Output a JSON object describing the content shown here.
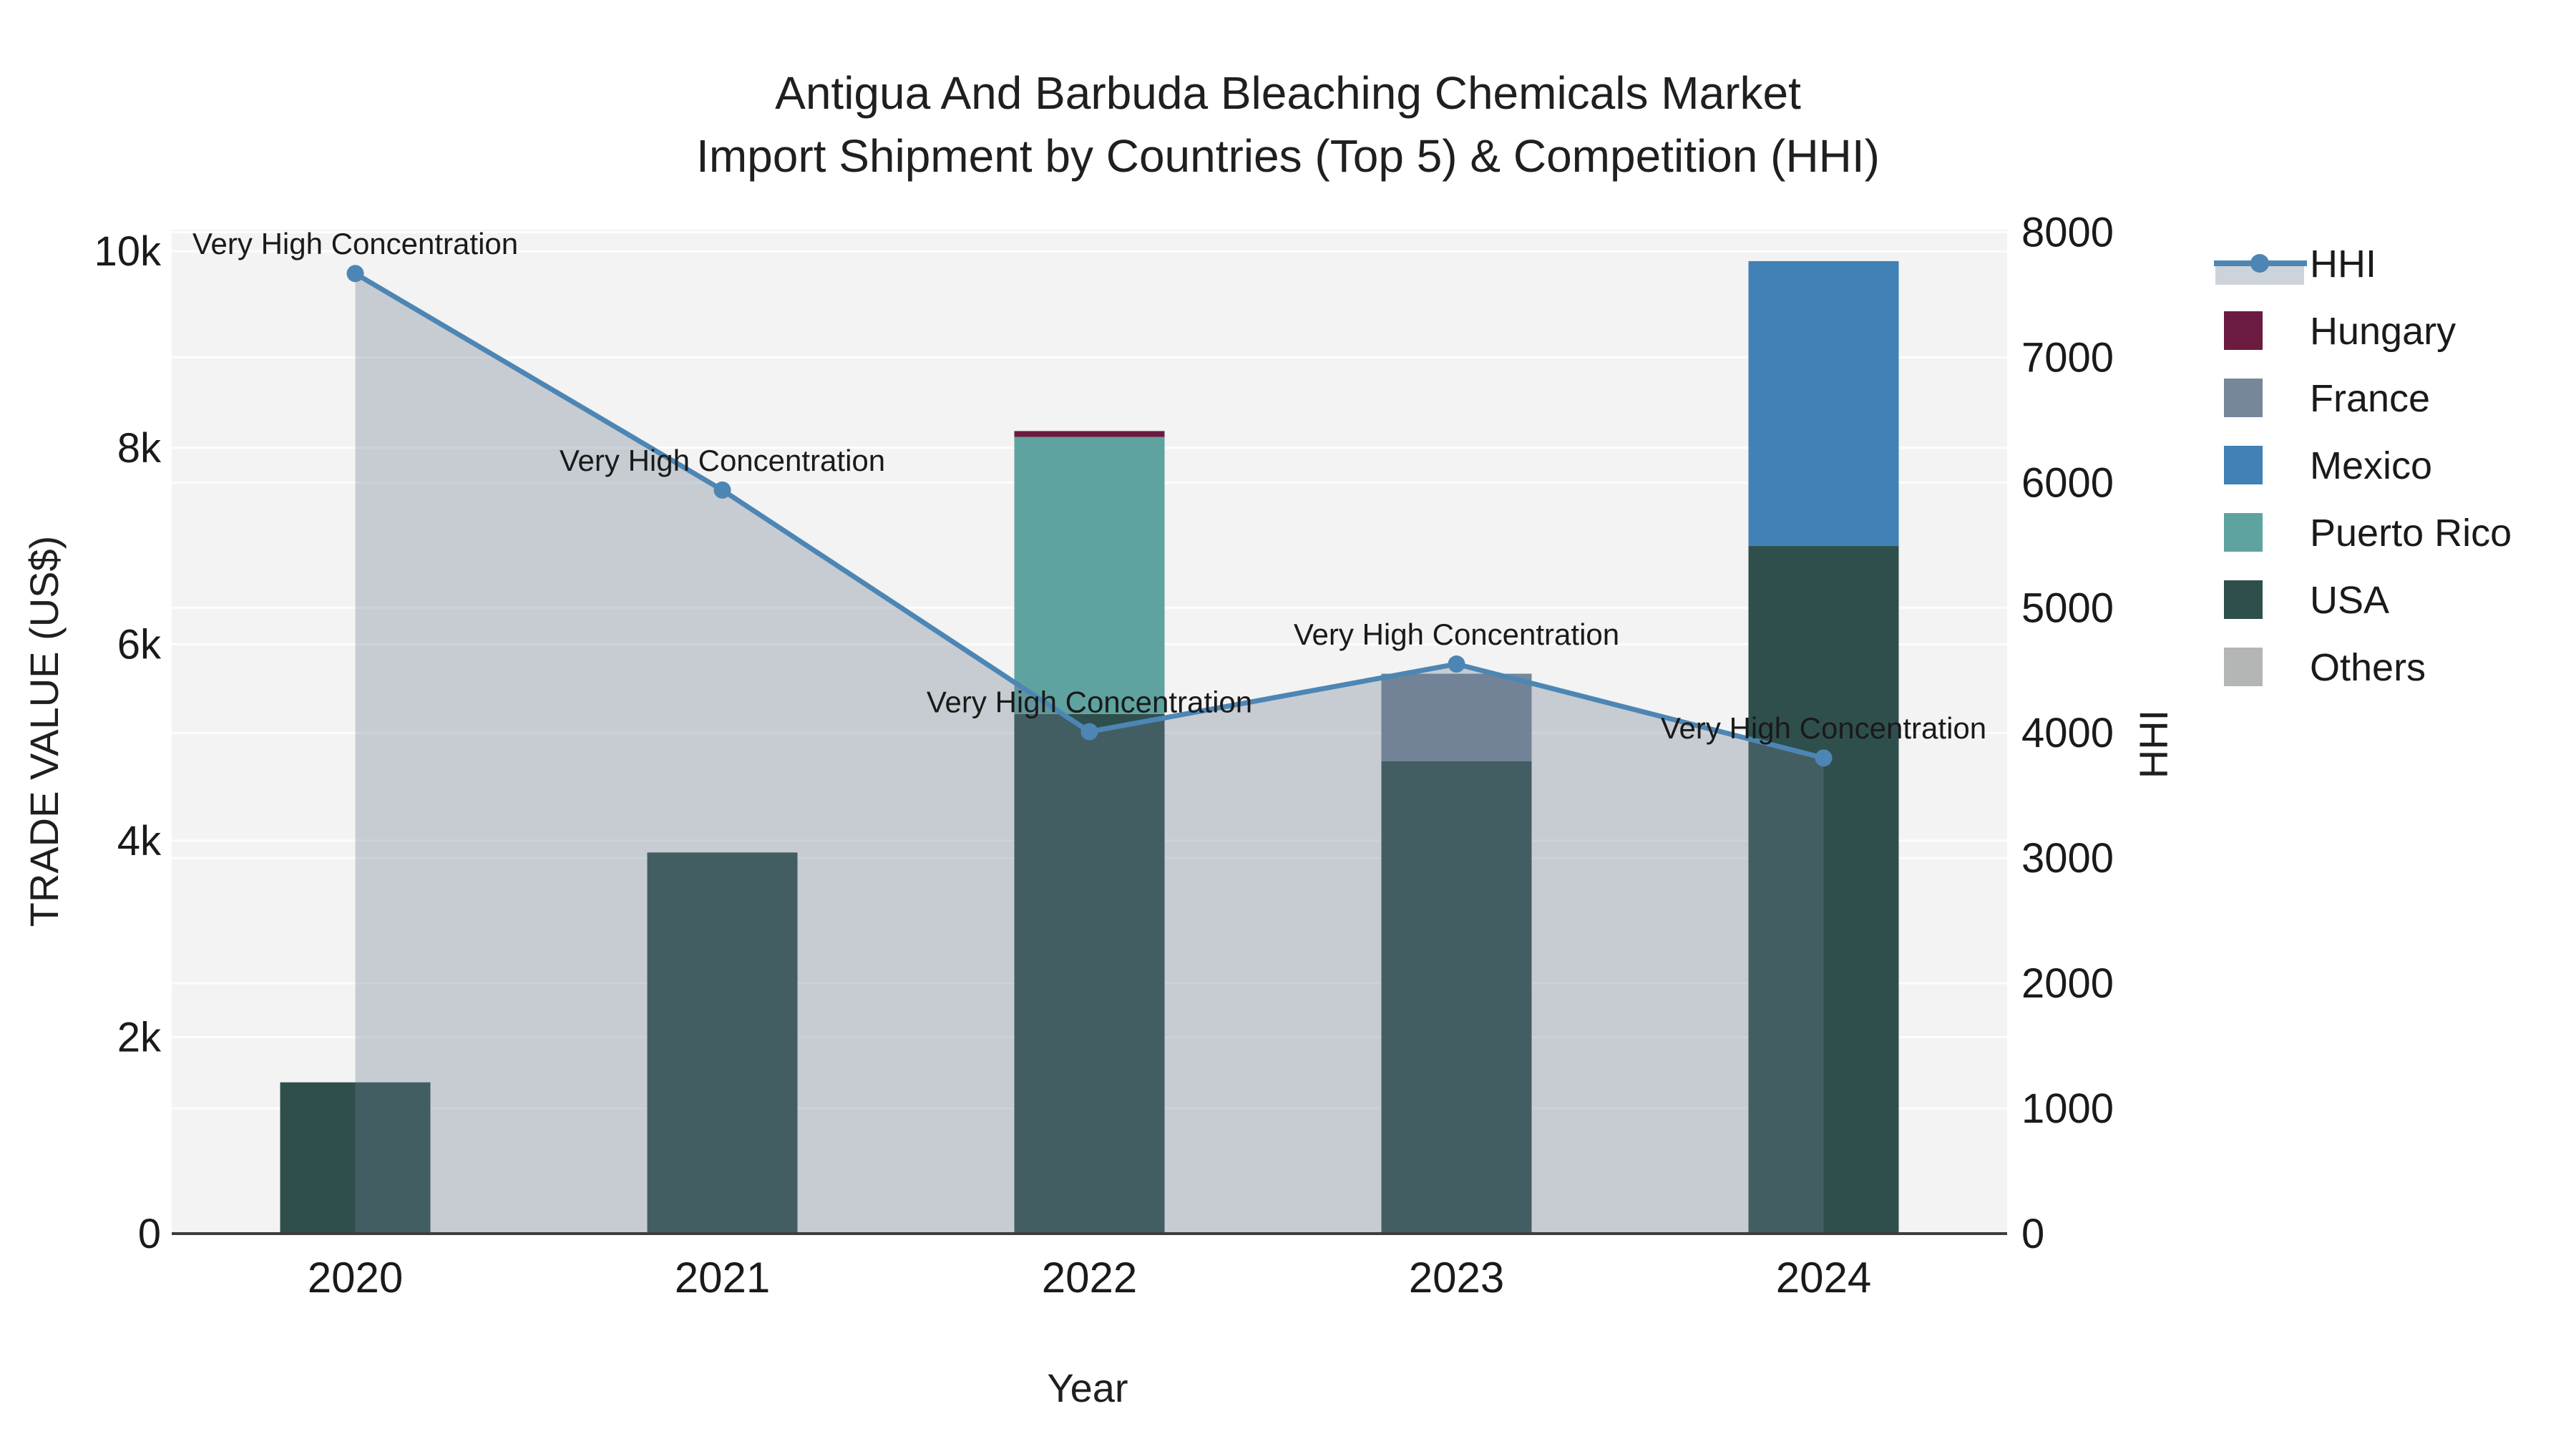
{
  "chart_data": {
    "type": "combo-stacked-bar-line",
    "title": "Antigua And Barbuda Bleaching Chemicals Market",
    "subtitle": "Import Shipment by Countries (Top 5) & Competition (HHI)",
    "xlabel": "Year",
    "ylabel_left": "TRADE VALUE (US$)",
    "ylabel_right": "HHI",
    "categories": [
      "2020",
      "2021",
      "2022",
      "2023",
      "2024"
    ],
    "bar_series": [
      {
        "name": "Hungary",
        "color": "#6b1b3f",
        "values": [
          0,
          0,
          60,
          0,
          0
        ]
      },
      {
        "name": "France",
        "color": "#76879a",
        "values": [
          0,
          0,
          0,
          890,
          0
        ]
      },
      {
        "name": "Mexico",
        "color": "#4181b5",
        "values": [
          0,
          0,
          0,
          0,
          2900
        ]
      },
      {
        "name": "Puerto Rico",
        "color": "#5fa3a0",
        "values": [
          0,
          0,
          2820,
          0,
          0
        ]
      },
      {
        "name": "USA",
        "color": "#2f4f4d",
        "values": [
          1540,
          3880,
          5290,
          4810,
          7000
        ]
      },
      {
        "name": "Others",
        "color": "#b3b6b5",
        "values": [
          0,
          0,
          0,
          0,
          0
        ]
      }
    ],
    "stack_order": [
      "Others",
      "USA",
      "Puerto Rico",
      "Mexico",
      "France",
      "Hungary"
    ],
    "line_series": {
      "name": "HHI",
      "color": "#4d86b4",
      "area_fill": "rgba(110,125,145,0.33)",
      "legend_band_color": "#ccd3da",
      "values": [
        7670,
        5940,
        4010,
        4550,
        3800
      ]
    },
    "annotations": [
      {
        "category": "2020",
        "text": "Very High Concentration"
      },
      {
        "category": "2021",
        "text": "Very High Concentration"
      },
      {
        "category": "2022",
        "text": "Very High Concentration"
      },
      {
        "category": "2023",
        "text": "Very High Concentration"
      },
      {
        "category": "2024",
        "text": "Very High Concentration"
      }
    ],
    "axes": {
      "left": {
        "range": [
          0,
          10220
        ],
        "ticks": [
          0,
          2000,
          4000,
          6000,
          8000,
          10000
        ],
        "tick_labels": [
          "0",
          "2k",
          "4k",
          "6k",
          "8k",
          "10k"
        ]
      },
      "right": {
        "range": [
          0,
          8020
        ],
        "ticks": [
          0,
          1000,
          2000,
          3000,
          4000,
          5000,
          6000,
          7000,
          8000
        ],
        "tick_labels": [
          "0",
          "1000",
          "2000",
          "3000",
          "4000",
          "5000",
          "6000",
          "7000",
          "8000"
        ]
      },
      "x": {
        "tick_labels": [
          "2020",
          "2021",
          "2022",
          "2023",
          "2024"
        ]
      }
    },
    "legend": {
      "position": "right",
      "entries": [
        "HHI",
        "Hungary",
        "France",
        "Mexico",
        "Puerto Rico",
        "USA",
        "Others"
      ]
    },
    "style": {
      "plot_bg": "#f2f3f2",
      "grid_color": "#ffffff",
      "axis_line_color": "#3d3d3d",
      "text_color": "#1a1a1a"
    }
  }
}
